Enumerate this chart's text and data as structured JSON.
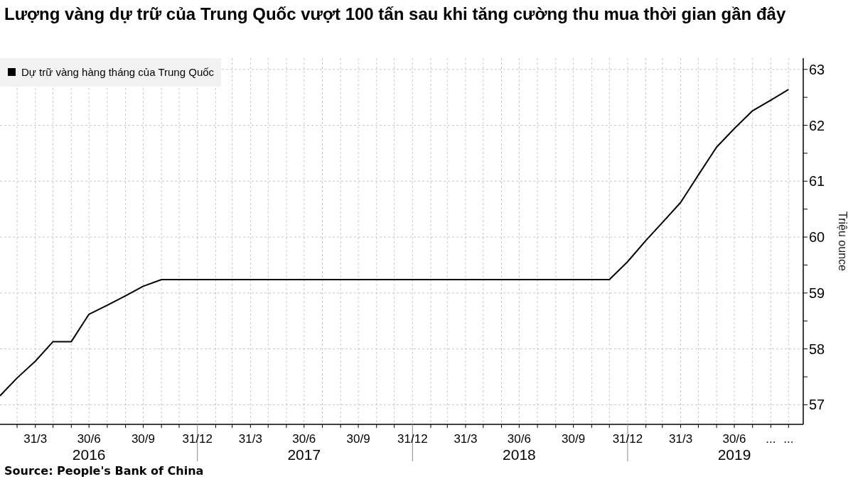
{
  "chart_data": {
    "type": "line",
    "title": "Lượng vàng dự trữ của Trung Quốc vượt 100 tấn sau khi tăng cường thu mua thời gian gần đây",
    "ylabel": "Triệu ounce",
    "annotations": [
      "Source: People's Bank of China"
    ],
    "x": [
      "2016-01-31",
      "2016-02-29",
      "2016-03-31",
      "2016-04-30",
      "2016-05-31",
      "2016-06-30",
      "2016-07-31",
      "2016-08-31",
      "2016-09-30",
      "2016-10-31",
      "2016-11-30",
      "2016-12-31",
      "2017-01-31",
      "2017-02-28",
      "2017-03-31",
      "2017-04-30",
      "2017-05-31",
      "2017-06-30",
      "2017-07-31",
      "2017-08-31",
      "2017-09-30",
      "2017-10-31",
      "2017-11-30",
      "2017-12-31",
      "2018-01-31",
      "2018-02-28",
      "2018-03-31",
      "2018-04-30",
      "2018-05-31",
      "2018-06-30",
      "2018-07-31",
      "2018-08-31",
      "2018-09-30",
      "2018-10-31",
      "2018-11-30",
      "2018-12-31",
      "2019-01-31",
      "2019-02-28",
      "2019-03-31",
      "2019-04-30",
      "2019-05-31",
      "2019-06-30",
      "2019-07-31",
      "2019-08-31",
      "2019-09-30"
    ],
    "series": [
      {
        "name": "Dự trữ vàng hàng tháng của Trung Quốc",
        "color": "#000000",
        "values": [
          57.16,
          57.48,
          57.78,
          58.13,
          58.13,
          58.62,
          58.78,
          58.95,
          59.12,
          59.24,
          59.24,
          59.24,
          59.24,
          59.24,
          59.24,
          59.24,
          59.24,
          59.24,
          59.24,
          59.24,
          59.24,
          59.24,
          59.24,
          59.24,
          59.24,
          59.24,
          59.24,
          59.24,
          59.24,
          59.24,
          59.24,
          59.24,
          59.24,
          59.24,
          59.24,
          59.56,
          59.94,
          60.26,
          60.62,
          61.11,
          61.61,
          61.94,
          62.26,
          62.45,
          62.64
        ]
      }
    ],
    "xlim": [
      "2016-01-31",
      "2019-10-25"
    ],
    "xticks": [
      {
        "value": "2016-02-29",
        "label": null
      },
      {
        "value": "2016-03-31",
        "label": "31/3"
      },
      {
        "value": "2016-04-30",
        "label": null
      },
      {
        "value": "2016-05-31",
        "label": null
      },
      {
        "value": "2016-06-30",
        "label": "30/6\n2016"
      },
      {
        "value": "2016-07-31",
        "label": null
      },
      {
        "value": "2016-08-31",
        "label": null
      },
      {
        "value": "2016-09-30",
        "label": "30/9"
      },
      {
        "value": "2016-10-31",
        "label": null
      },
      {
        "value": "2016-11-30",
        "label": null
      },
      {
        "value": "2016-12-31",
        "label": "31/12"
      },
      {
        "value": "2017-01-31",
        "label": null
      },
      {
        "value": "2017-02-28",
        "label": null
      },
      {
        "value": "2017-03-31",
        "label": "31/3"
      },
      {
        "value": "2017-04-30",
        "label": null
      },
      {
        "value": "2017-05-31",
        "label": null
      },
      {
        "value": "2017-06-30",
        "label": "30/6\n2017"
      },
      {
        "value": "2017-07-31",
        "label": null
      },
      {
        "value": "2017-08-31",
        "label": null
      },
      {
        "value": "2017-09-30",
        "label": "30/9"
      },
      {
        "value": "2017-10-31",
        "label": null
      },
      {
        "value": "2017-11-30",
        "label": null
      },
      {
        "value": "2017-12-31",
        "label": "31/12"
      },
      {
        "value": "2018-01-31",
        "label": null
      },
      {
        "value": "2018-02-28",
        "label": null
      },
      {
        "value": "2018-03-31",
        "label": "31/3"
      },
      {
        "value": "2018-04-30",
        "label": null
      },
      {
        "value": "2018-05-31",
        "label": null
      },
      {
        "value": "2018-06-30",
        "label": "30/6\n2018"
      },
      {
        "value": "2018-07-31",
        "label": null
      },
      {
        "value": "2018-08-31",
        "label": null
      },
      {
        "value": "2018-09-30",
        "label": "30/9"
      },
      {
        "value": "2018-10-31",
        "label": null
      },
      {
        "value": "2018-11-30",
        "label": null
      },
      {
        "value": "2018-12-31",
        "label": "31/12"
      },
      {
        "value": "2019-01-31",
        "label": null
      },
      {
        "value": "2019-02-28",
        "label": null
      },
      {
        "value": "2019-03-31",
        "label": "31/3"
      },
      {
        "value": "2019-04-30",
        "label": null
      },
      {
        "value": "2019-05-31",
        "label": null
      },
      {
        "value": "2019-06-30",
        "label": "30/6\n2019"
      },
      {
        "value": "2019-07-31",
        "label": null
      },
      {
        "value": "2019-08-31",
        "label": "..."
      },
      {
        "value": "2019-09-30",
        "label": "..."
      }
    ],
    "ylim": [
      56.65,
      63.2
    ],
    "yticks": [
      57,
      {
        "value": 57.5,
        "label": null
      },
      58,
      {
        "value": 58.5,
        "label": null
      },
      59,
      {
        "value": 59.5,
        "label": null
      },
      60,
      {
        "value": 60.5,
        "label": null
      },
      61,
      {
        "value": 61.5,
        "label": null
      },
      62,
      {
        "value": 62.5,
        "label": null
      },
      63
    ],
    "grid": true,
    "legend": "top left"
  }
}
